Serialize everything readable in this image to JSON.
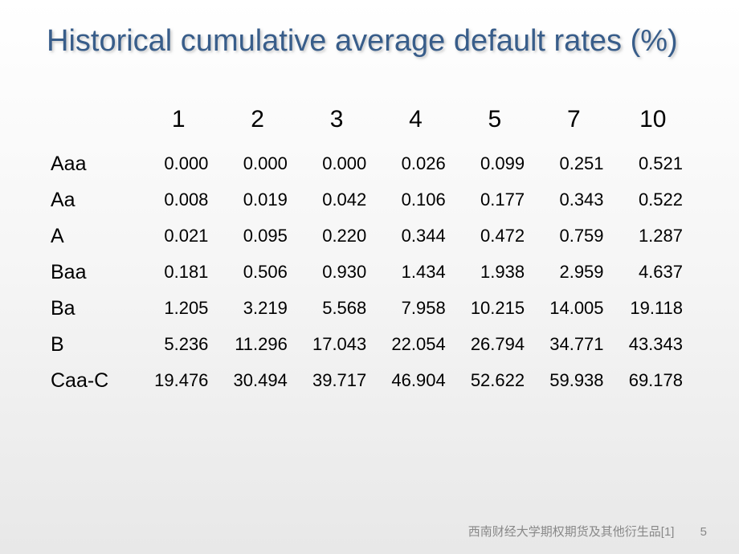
{
  "title": "Historical cumulative average default rates (%)",
  "table": {
    "type": "table",
    "year_headers": [
      "1",
      "2",
      "3",
      "4",
      "5",
      "7",
      "10"
    ],
    "ratings": [
      "Aaa",
      "Aa",
      "A",
      "Baa",
      "Ba",
      "B",
      "Caa-C"
    ],
    "rows": [
      [
        "0.000",
        "0.000",
        "0.000",
        "0.026",
        "0.099",
        "0.251",
        "0.521"
      ],
      [
        "0.008",
        "0.019",
        "0.042",
        "0.106",
        "0.177",
        "0.343",
        "0.522"
      ],
      [
        "0.021",
        "0.095",
        "0.220",
        "0.344",
        "0.472",
        "0.759",
        "1.287"
      ],
      [
        "0.181",
        "0.506",
        "0.930",
        "1.434",
        "1.938",
        "2.959",
        "4.637"
      ],
      [
        "1.205",
        "3.219",
        "5.568",
        "7.958",
        "10.215",
        "14.005",
        "19.118"
      ],
      [
        "5.236",
        "11.296",
        "17.043",
        "22.054",
        "26.794",
        "34.771",
        "43.343"
      ],
      [
        "19.476",
        "30.494",
        "39.717",
        "46.904",
        "52.622",
        "59.938",
        "69.178"
      ]
    ],
    "header_fontsize": 30,
    "rating_fontsize": 25,
    "value_fontsize": 22,
    "text_color": "#000000"
  },
  "colors": {
    "title_color": "#385d8a",
    "background_top": "#ffffff",
    "background_bottom": "#e8e8e8",
    "footer_color": "#888888"
  },
  "footer": {
    "text": "西南财经大学期权期货及其他衍生品[1]",
    "page_number": "5"
  }
}
